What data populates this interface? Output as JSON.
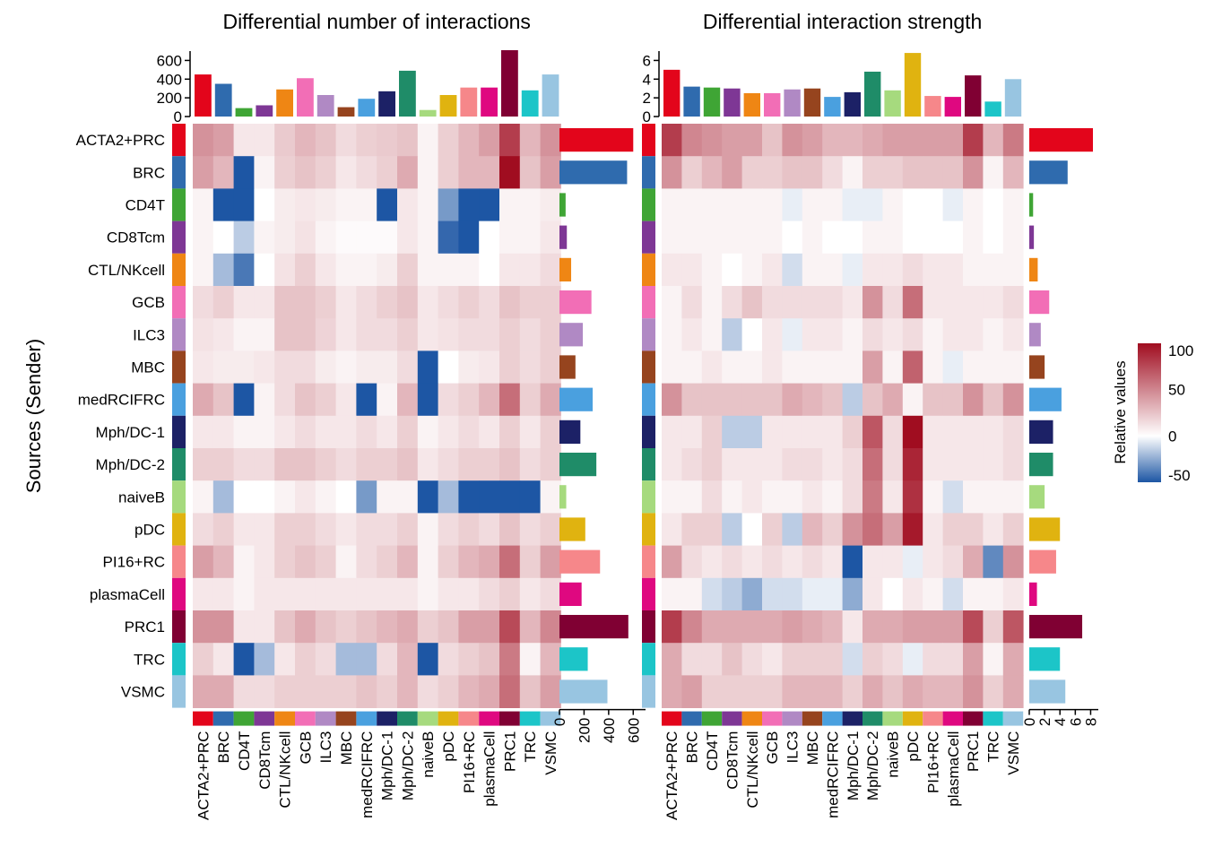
{
  "chart_data": {
    "type": "heatmap",
    "ylabel": "Sources (Sender)",
    "cell_types": [
      "ACTA2+PRC",
      "BRC",
      "CD4T",
      "CD8Tcm",
      "CTL/NKcell",
      "GCB",
      "ILC3",
      "MBC",
      "medRCIFRC",
      "Mph/DC-1",
      "Mph/DC-2",
      "naiveB",
      "pDC",
      "PI16+RC",
      "plasmaCell",
      "PRC1",
      "TRC",
      "VSMC"
    ],
    "type_colors": [
      "#E3051B",
      "#2F6BAE",
      "#3FA535",
      "#7E3795",
      "#EF8614",
      "#F26EB6",
      "#B089C4",
      "#96441E",
      "#4AA0DF",
      "#1C2166",
      "#1F8C68",
      "#A6DA7E",
      "#E0B310",
      "#F6878A",
      "#DF0880",
      "#800033",
      "#1CC5C8",
      "#98C5E1"
    ],
    "legend": {
      "title": "Relative values",
      "ticks": [
        100,
        50,
        0,
        -50
      ],
      "color_low": "#1D56A4",
      "color_mid": "#FFFFFF",
      "color_high": "#A00D20",
      "range": [
        -50,
        100
      ],
      "position": "right"
    },
    "panels": [
      {
        "title": "Differential number of interactions",
        "top_axis_ticks": [
          "0",
          "200",
          "400",
          "600"
        ],
        "top_axis_max": 700,
        "top_bars": [
          450,
          350,
          90,
          120,
          290,
          410,
          230,
          100,
          190,
          270,
          490,
          70,
          230,
          310,
          310,
          710,
          280,
          450
        ],
        "right_axis_ticks": [
          "0",
          "200",
          "400",
          "600"
        ],
        "right_axis_max": 700,
        "right_bars": [
          600,
          550,
          50,
          60,
          95,
          260,
          190,
          130,
          270,
          170,
          300,
          55,
          210,
          330,
          180,
          560,
          230,
          390
        ],
        "values": [
          [
            45,
            40,
            10,
            10,
            22,
            30,
            25,
            15,
            20,
            22,
            25,
            5,
            20,
            30,
            40,
            80,
            30,
            45
          ],
          [
            40,
            30,
            -100,
            5,
            20,
            25,
            20,
            10,
            15,
            20,
            35,
            5,
            20,
            30,
            30,
            100,
            25,
            40
          ],
          [
            5,
            -100,
            -100,
            0,
            8,
            10,
            8,
            5,
            5,
            -100,
            10,
            5,
            -30,
            -100,
            -100,
            5,
            5,
            8
          ],
          [
            5,
            0,
            -15,
            5,
            8,
            12,
            5,
            2,
            2,
            2,
            10,
            5,
            -45,
            -100,
            0,
            5,
            5,
            10
          ],
          [
            5,
            -20,
            -40,
            0,
            12,
            20,
            10,
            5,
            5,
            8,
            20,
            5,
            5,
            5,
            0,
            10,
            10,
            15
          ],
          [
            15,
            20,
            10,
            10,
            25,
            25,
            20,
            10,
            15,
            20,
            25,
            10,
            15,
            20,
            15,
            25,
            20,
            20
          ],
          [
            12,
            10,
            5,
            5,
            25,
            25,
            18,
            10,
            15,
            15,
            20,
            10,
            12,
            15,
            15,
            20,
            15,
            20
          ],
          [
            10,
            8,
            8,
            10,
            15,
            15,
            8,
            5,
            8,
            8,
            15,
            -100,
            0,
            8,
            10,
            20,
            15,
            20
          ],
          [
            35,
            25,
            -100,
            5,
            15,
            25,
            20,
            10,
            -100,
            5,
            30,
            -100,
            15,
            20,
            30,
            60,
            20,
            35
          ],
          [
            10,
            10,
            5,
            5,
            10,
            15,
            10,
            10,
            15,
            10,
            20,
            5,
            10,
            15,
            10,
            20,
            10,
            20
          ],
          [
            20,
            20,
            15,
            15,
            25,
            25,
            20,
            15,
            20,
            20,
            25,
            10,
            15,
            20,
            20,
            25,
            15,
            20
          ],
          [
            5,
            -20,
            0,
            0,
            5,
            10,
            5,
            0,
            -30,
            5,
            5,
            -70,
            -20,
            -100,
            -100,
            -100,
            -100,
            5
          ],
          [
            15,
            20,
            10,
            10,
            20,
            20,
            15,
            10,
            15,
            15,
            20,
            5,
            15,
            20,
            15,
            25,
            15,
            20
          ],
          [
            40,
            30,
            5,
            10,
            20,
            25,
            20,
            5,
            15,
            20,
            30,
            5,
            20,
            30,
            35,
            60,
            20,
            40
          ],
          [
            10,
            10,
            5,
            10,
            10,
            10,
            10,
            10,
            10,
            10,
            10,
            5,
            10,
            10,
            15,
            20,
            10,
            15
          ],
          [
            45,
            45,
            10,
            10,
            25,
            35,
            25,
            20,
            25,
            30,
            35,
            20,
            25,
            40,
            40,
            75,
            30,
            50
          ],
          [
            20,
            10,
            -60,
            -20,
            10,
            20,
            15,
            -20,
            -20,
            15,
            30,
            -100,
            15,
            20,
            25,
            55,
            5,
            30
          ],
          [
            35,
            35,
            15,
            15,
            20,
            20,
            20,
            20,
            25,
            20,
            30,
            15,
            20,
            30,
            35,
            60,
            25,
            40
          ]
        ]
      },
      {
        "title": "Differential interaction strength",
        "top_axis_ticks": [
          "0",
          "2",
          "4",
          "6"
        ],
        "top_axis_max": 7,
        "top_bars": [
          5.0,
          3.2,
          3.1,
          3.0,
          2.5,
          2.5,
          2.9,
          3.0,
          2.1,
          2.6,
          4.8,
          2.8,
          6.8,
          2.2,
          2.1,
          4.4,
          1.6,
          4.0
        ],
        "right_axis_ticks": [
          "0",
          "2",
          "4",
          "6",
          "8"
        ],
        "right_axis_max": 9,
        "right_bars": [
          8.3,
          5.0,
          0.5,
          0.6,
          1.1,
          2.6,
          1.5,
          2.0,
          4.2,
          3.1,
          3.1,
          2.0,
          4.0,
          3.5,
          1.0,
          6.9,
          4.0,
          4.7
        ],
        "values": [
          [
            80,
            50,
            45,
            40,
            40,
            25,
            45,
            40,
            30,
            30,
            35,
            40,
            40,
            40,
            40,
            80,
            30,
            55
          ],
          [
            45,
            20,
            30,
            40,
            20,
            20,
            25,
            25,
            15,
            5,
            20,
            20,
            25,
            25,
            25,
            45,
            5,
            30
          ],
          [
            5,
            5,
            5,
            5,
            5,
            5,
            -5,
            5,
            5,
            -5,
            -5,
            5,
            0,
            0,
            -5,
            5,
            0,
            5
          ],
          [
            5,
            5,
            5,
            5,
            5,
            5,
            0,
            5,
            0,
            0,
            5,
            5,
            0,
            0,
            0,
            5,
            0,
            5
          ],
          [
            10,
            10,
            5,
            0,
            5,
            10,
            -10,
            5,
            5,
            -5,
            10,
            10,
            15,
            10,
            10,
            5,
            5,
            5
          ],
          [
            5,
            15,
            5,
            15,
            25,
            15,
            15,
            15,
            15,
            10,
            45,
            15,
            60,
            10,
            10,
            10,
            10,
            15
          ],
          [
            5,
            10,
            5,
            -15,
            0,
            10,
            -5,
            10,
            10,
            5,
            15,
            10,
            15,
            5,
            10,
            10,
            5,
            10
          ],
          [
            5,
            5,
            10,
            5,
            5,
            10,
            5,
            5,
            5,
            5,
            40,
            5,
            65,
            5,
            -5,
            5,
            5,
            5
          ],
          [
            45,
            25,
            25,
            25,
            25,
            25,
            35,
            30,
            25,
            -15,
            25,
            35,
            5,
            25,
            25,
            45,
            25,
            45
          ],
          [
            10,
            10,
            20,
            -15,
            -15,
            10,
            10,
            10,
            10,
            20,
            70,
            15,
            110,
            10,
            10,
            10,
            10,
            15
          ],
          [
            10,
            15,
            20,
            10,
            10,
            10,
            15,
            15,
            10,
            15,
            60,
            15,
            90,
            10,
            10,
            10,
            10,
            15
          ],
          [
            5,
            5,
            15,
            5,
            10,
            5,
            5,
            10,
            5,
            15,
            55,
            10,
            85,
            5,
            -10,
            5,
            5,
            5
          ],
          [
            10,
            20,
            20,
            -15,
            0,
            20,
            -15,
            30,
            20,
            45,
            60,
            40,
            95,
            10,
            20,
            20,
            10,
            20
          ],
          [
            40,
            15,
            10,
            15,
            10,
            15,
            10,
            15,
            10,
            -75,
            10,
            10,
            -5,
            10,
            15,
            35,
            -35,
            45
          ],
          [
            5,
            5,
            -10,
            -15,
            -25,
            -10,
            -10,
            -5,
            -5,
            -25,
            10,
            0,
            10,
            5,
            -10,
            5,
            5,
            10
          ],
          [
            80,
            50,
            35,
            35,
            35,
            35,
            40,
            35,
            30,
            10,
            35,
            35,
            40,
            40,
            40,
            75,
            20,
            70
          ],
          [
            35,
            15,
            15,
            25,
            15,
            10,
            20,
            20,
            20,
            -10,
            20,
            15,
            -5,
            15,
            15,
            40,
            5,
            35
          ],
          [
            35,
            40,
            20,
            20,
            20,
            20,
            30,
            30,
            30,
            20,
            35,
            25,
            35,
            30,
            30,
            45,
            20,
            35
          ]
        ]
      }
    ]
  }
}
